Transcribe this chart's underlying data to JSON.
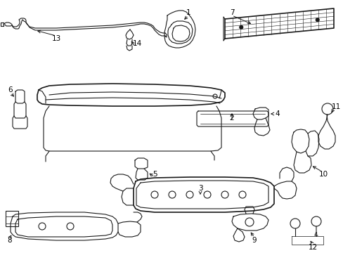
{
  "background_color": "#ffffff",
  "line_color": "#1a1a1a",
  "text_color": "#000000",
  "fig_width": 4.89,
  "fig_height": 3.6,
  "dpi": 100,
  "label_fontsize": 7.5
}
